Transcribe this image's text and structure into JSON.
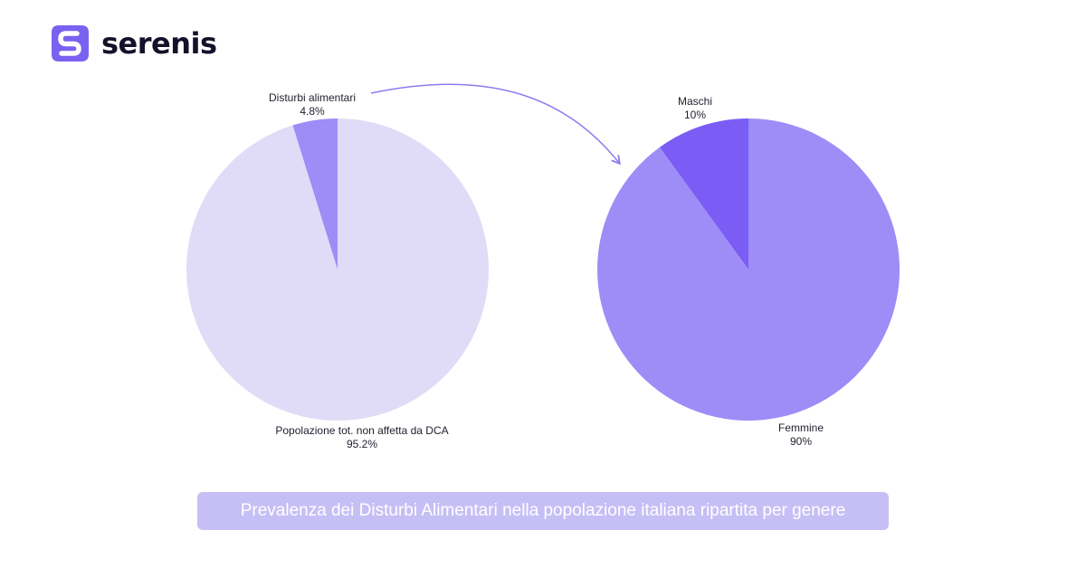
{
  "brand": {
    "name": "serenis",
    "logo_icon": "serenis-s-logo-icon",
    "color": "#7b61f0"
  },
  "chart_data": [
    {
      "type": "pie",
      "slices": [
        {
          "label": "Disturbi alimentari",
          "value": 4.8,
          "value_label": "4.8%",
          "color": "#9e8cf7"
        },
        {
          "label": "Popolazione tot. non affetta da DCA",
          "value": 95.2,
          "value_label": "95.2%",
          "color": "#e0dcf7"
        }
      ]
    },
    {
      "type": "pie",
      "slices": [
        {
          "label": "Maschi",
          "value": 10,
          "value_label": "10%",
          "color": "#7b5cf4"
        },
        {
          "label": "Femmine",
          "value": 90,
          "value_label": "90%",
          "color": "#9e8cf7"
        }
      ]
    }
  ],
  "connector": {
    "icon": "curved-arrow-icon",
    "color": "#8c7cf0"
  },
  "caption": {
    "text": "Prevalenza dei Disturbi Alimentari nella popolazione italiana ripartita per genere",
    "background": "#c6bff5"
  }
}
